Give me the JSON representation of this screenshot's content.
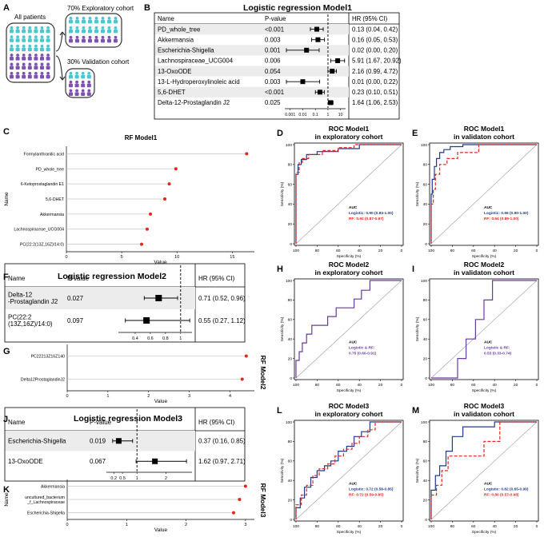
{
  "panel_a": {
    "label": "A",
    "all_patients": "All patients",
    "exploratory": "70% Exploratory cohort",
    "validation": "30% Validation cohort",
    "colors": {
      "teal": "#4bc8cf",
      "purple": "#7e52b4"
    }
  },
  "chart_data": [
    {
      "id": "B",
      "type": "forest",
      "title": "Logistic regression Model1",
      "headers": {
        "name": "Name",
        "p": "P-value",
        "hr": "HR (95% CI)"
      },
      "rows": [
        {
          "name": "PD_whole_tree",
          "p": "<0.001",
          "hr": 0.13,
          "lo": 0.04,
          "hi": 0.42,
          "hr_text": "0.13 (0.04, 0.42)"
        },
        {
          "name": "Akkermansia",
          "p": "0.003",
          "hr": 0.16,
          "lo": 0.05,
          "hi": 0.53,
          "hr_text": "0.16 (0.05, 0.53)"
        },
        {
          "name": "Escherichia-Shigella",
          "p": "0.001",
          "hr": 0.02,
          "lo": 0.0,
          "hi": 0.2,
          "hr_text": "0.02 (0.00, 0.20)"
        },
        {
          "name": "Lachnospiraceae_UCG004",
          "p": "0.006",
          "hr": 5.91,
          "lo": 1.67,
          "hi": 20.92,
          "hr_text": "5.91 (1.67, 20.92)"
        },
        {
          "name": "13-OxoODE",
          "p": "0.054",
          "hr": 2.16,
          "lo": 0.99,
          "hi": 4.72,
          "hr_text": "2.16 (0.99, 4.72)"
        },
        {
          "name": "13-L-Hydroperoxylinoleic acid",
          "p": "0.003",
          "hr": 0.01,
          "lo": 0.0,
          "hi": 0.22,
          "hr_text": "0.01 (0.00, 0.22)"
        },
        {
          "name": "5,6-DHET",
          "p": "<0.001",
          "hr": 0.23,
          "lo": 0.1,
          "hi": 0.51,
          "hr_text": "0.23 (0.10, 0.51)"
        },
        {
          "name": "Delta-12-Prostaglandin J2",
          "p": "0.025",
          "hr": 1.64,
          "lo": 1.06,
          "hi": 2.53,
          "hr_text": "1.64 (1.06, 2.53)"
        }
      ],
      "xscale": "log",
      "ticks": [
        "0.001",
        "0.01",
        "0.1",
        "1",
        "10"
      ]
    },
    {
      "id": "C",
      "type": "lollipop",
      "title": "RF Model1",
      "xlabel": "Value",
      "ylabel": "Name",
      "categories": [
        "Formylanthranilic acid",
        "PD_whole_tree",
        "6-Ketoprostaglandin E1",
        "5,6-DHET",
        "Akkermansia",
        "Lachnospiraceae_UCG004",
        "PC(22:2(13Z,16Z)/14:0)"
      ],
      "values": [
        16.3,
        9.9,
        9.3,
        8.9,
        7.6,
        7.3,
        6.8
      ],
      "xlim": [
        0,
        17
      ],
      "ticks": [
        "0",
        "5",
        "10",
        "15"
      ]
    },
    {
      "id": "D",
      "type": "roc",
      "title": "ROC Model1",
      "subtitle": "in exploratory cohort",
      "xlabel": "Specificity (%)",
      "ylabel": "Sensitivity (%)",
      "xticks": [
        "100",
        "80",
        "60",
        "40",
        "20",
        "0"
      ],
      "yticks": [
        "0",
        "20",
        "40",
        "60",
        "80",
        "100"
      ],
      "auc_title": "AUC",
      "series": [
        {
          "name": "Logistic",
          "label": "Logistic: 0.90 (0.83-1.00)",
          "color": "#1f3a93",
          "dash": false,
          "fpr": [
            0,
            0,
            2,
            2,
            5,
            5,
            10,
            10,
            20,
            20,
            40,
            40,
            60,
            60,
            100
          ],
          "tpr": [
            0,
            70,
            70,
            80,
            80,
            85,
            85,
            90,
            90,
            93,
            93,
            96,
            96,
            100,
            100
          ]
        },
        {
          "name": "RF",
          "label": "RF: 0.92 (0.87-0.97)",
          "color": "#e3261e",
          "dash": true,
          "fpr": [
            0,
            0,
            3,
            3,
            6,
            6,
            12,
            12,
            25,
            25,
            40,
            40,
            55,
            55,
            100
          ],
          "tpr": [
            0,
            72,
            72,
            82,
            82,
            86,
            86,
            90,
            90,
            94,
            94,
            97,
            97,
            100,
            100
          ]
        }
      ]
    },
    {
      "id": "E",
      "type": "roc",
      "title": "ROC Model1",
      "subtitle": "in validaton cohort",
      "xlabel": "Specificity (%)",
      "ylabel": "Sensitivity (%)",
      "xticks": [
        "100",
        "80",
        "60",
        "40",
        "20",
        "0"
      ],
      "yticks": [
        "0",
        "20",
        "40",
        "60",
        "80",
        "100"
      ],
      "auc_title": "AUC",
      "series": [
        {
          "name": "Logistic",
          "label": "Logistic: 0.96 (0.90-1.00)",
          "color": "#1f3a93",
          "dash": false,
          "fpr": [
            0,
            0,
            1,
            1,
            3,
            3,
            5,
            5,
            8,
            8,
            12,
            12,
            18,
            18,
            30,
            30,
            100
          ],
          "tpr": [
            0,
            50,
            50,
            65,
            65,
            78,
            78,
            86,
            86,
            92,
            92,
            95,
            95,
            98,
            98,
            100,
            100
          ]
        },
        {
          "name": "RF",
          "label": "RF: 0.94 (0.89-1.00)",
          "color": "#e3261e",
          "dash": true,
          "fpr": [
            0,
            0,
            2,
            2,
            4,
            4,
            8,
            8,
            15,
            15,
            25,
            25,
            45,
            45,
            100
          ],
          "tpr": [
            0,
            40,
            40,
            55,
            55,
            70,
            70,
            80,
            80,
            86,
            86,
            92,
            92,
            100,
            100
          ]
        }
      ]
    },
    {
      "id": "F",
      "type": "forest",
      "title": "Logistic regression Model2",
      "headers": {
        "name": "Name",
        "p": "P-value",
        "hr": "HR (95% CI)"
      },
      "rows": [
        {
          "name_lines": [
            "Delta-12",
            "-Prostaglandin J2"
          ],
          "p": "0.027",
          "hr": 0.71,
          "lo": 0.52,
          "hi": 0.96,
          "hr_text": "0.71 (0.52, 0.96)"
        },
        {
          "name_lines": [
            "PC(22:2",
            "(13Z,16Z)/14:0)"
          ],
          "p": "0.097",
          "hr": 0.55,
          "lo": 0.27,
          "hi": 1.12,
          "hr_text": "0.55 (0.27, 1.12)"
        }
      ],
      "xscale": "linear",
      "xlim": [
        0.2,
        1.15
      ],
      "ticks": [
        "0.4",
        "0.6",
        "0.8",
        "1"
      ]
    },
    {
      "id": "G",
      "type": "lollipop",
      "title": "RF Model2",
      "xlabel": "Value",
      "categories": [
        "PC22213Z16Z140",
        "Delta12ProstaglandinJ2"
      ],
      "values": [
        4.4,
        4.3
      ],
      "xlim": [
        0,
        4.6
      ],
      "ticks": [
        "0",
        "1",
        "2",
        "3",
        "4"
      ]
    },
    {
      "id": "H",
      "type": "roc",
      "title": "ROC Model2",
      "subtitle": "in exploratory cohort",
      "xlabel": "Specificity (%)",
      "ylabel": "Sensitivity (%)",
      "xticks": [
        "100",
        "80",
        "60",
        "40",
        "20",
        "0"
      ],
      "yticks": [
        "0",
        "20",
        "40",
        "60",
        "80",
        "100"
      ],
      "auc_title": "AUC",
      "auc_sub": "Logistic & RF:",
      "series": [
        {
          "name": "Logistic & RF",
          "label": "0.75 (0.60-0.91)",
          "color": "#6a3a9f",
          "dash": false,
          "fpr": [
            0,
            0,
            3,
            3,
            6,
            6,
            10,
            10,
            15,
            15,
            22,
            22,
            30,
            30,
            38,
            38,
            45,
            45,
            55,
            55,
            62,
            62,
            70,
            70,
            80,
            100
          ],
          "tpr": [
            0,
            18,
            18,
            27,
            27,
            36,
            36,
            45,
            45,
            54,
            54,
            54,
            54,
            63,
            63,
            72,
            72,
            72,
            72,
            81,
            81,
            90,
            90,
            100,
            100,
            100
          ]
        }
      ]
    },
    {
      "id": "I",
      "type": "roc",
      "title": "ROC Model2",
      "subtitle": "in validaton cohort",
      "xlabel": "Specificity (%)",
      "ylabel": "Sensitivity (%)",
      "xticks": [
        "100",
        "80",
        "60",
        "40",
        "20",
        "0"
      ],
      "yticks": [
        "0",
        "20",
        "40",
        "60",
        "80",
        "100"
      ],
      "auc_title": "AUC",
      "auc_sub": "Logistic & RF:",
      "series": [
        {
          "name": "Logistic & RF",
          "label": "0.53 (0.33-0.74)",
          "color": "#6a3a9f",
          "dash": false,
          "fpr": [
            0,
            0,
            25,
            25,
            33,
            33,
            42,
            42,
            50,
            50,
            58,
            58,
            100
          ],
          "tpr": [
            0,
            0,
            0,
            20,
            20,
            40,
            40,
            60,
            60,
            80,
            80,
            100,
            100
          ]
        }
      ]
    },
    {
      "id": "J",
      "type": "forest",
      "title": "Logistic regression Model3",
      "headers": {
        "name": "Name",
        "p": "P-value",
        "hr": "HR (95% CI)"
      },
      "rows": [
        {
          "name": "Escherichia-Shigella",
          "p": "0.019",
          "hr": 0.37,
          "lo": 0.16,
          "hi": 0.85,
          "hr_text": "0.37 (0.16, 0.85)"
        },
        {
          "name": "13-OxoODE",
          "p": "0.067",
          "hr": 1.62,
          "lo": 0.97,
          "hi": 2.71,
          "hr_text": "1.62 (0.97, 2.71)"
        }
      ],
      "xscale": "linear",
      "xlim": [
        0,
        2.9
      ],
      "ticks": [
        "0.2",
        "0.5",
        "1",
        "2"
      ]
    },
    {
      "id": "K",
      "type": "lollipop",
      "title": "RF Model3",
      "xlabel": "Value",
      "ylabel": "Name",
      "categories": [
        "Akkermansia",
        "uncultured_bacterium_f_Lachnospiraceae",
        "Escherichia-Shigella"
      ],
      "category_lines": [
        [
          "Akkermansia"
        ],
        [
          "uncultured_bacterium",
          "_f_Lachnospiraceae"
        ],
        [
          "Escherichia-Shigella"
        ]
      ],
      "values": [
        3.0,
        2.9,
        2.8
      ],
      "xlim": [
        0,
        3.15
      ],
      "ticks": [
        "0",
        "1",
        "2",
        "3"
      ]
    },
    {
      "id": "L",
      "type": "roc",
      "title": "ROC Model3",
      "subtitle": "in exploratory cohort",
      "xlabel": "Specificity (%)",
      "ylabel": "Sensitivity (%)",
      "xticks": [
        "100",
        "80",
        "60",
        "40",
        "20",
        "0"
      ],
      "yticks": [
        "0",
        "20",
        "40",
        "60",
        "80",
        "100"
      ],
      "auc_title": "AUC",
      "series": [
        {
          "name": "Logistic",
          "label": "Logistic: 0.72 (0.58-0.85)",
          "color": "#1f3a93",
          "dash": false,
          "fpr": [
            0,
            0,
            4,
            4,
            8,
            8,
            14,
            14,
            20,
            20,
            27,
            27,
            33,
            33,
            40,
            40,
            48,
            48,
            55,
            55,
            62,
            62,
            70,
            70,
            80,
            100
          ],
          "tpr": [
            0,
            12,
            12,
            22,
            22,
            33,
            33,
            43,
            43,
            50,
            50,
            55,
            55,
            60,
            60,
            70,
            70,
            75,
            75,
            85,
            85,
            90,
            90,
            100,
            100,
            100
          ]
        },
        {
          "name": "RF",
          "label": "RF: 0.72 (0.59-0.85)",
          "color": "#e3261e",
          "dash": true,
          "fpr": [
            0,
            0,
            5,
            5,
            10,
            10,
            16,
            16,
            22,
            22,
            30,
            30,
            37,
            37,
            45,
            45,
            53,
            53,
            60,
            60,
            68,
            68,
            75,
            75,
            85,
            100
          ],
          "tpr": [
            0,
            15,
            15,
            25,
            25,
            35,
            35,
            45,
            45,
            52,
            52,
            57,
            57,
            65,
            65,
            72,
            72,
            78,
            78,
            85,
            85,
            92,
            92,
            100,
            100,
            100
          ]
        }
      ]
    },
    {
      "id": "M",
      "type": "roc",
      "title": "ROC Model3",
      "subtitle": "in validaton cohort",
      "xlabel": "Specificity (%)",
      "ylabel": "Sensitivity (%)",
      "xticks": [
        "100",
        "80",
        "60",
        "40",
        "20",
        "0"
      ],
      "yticks": [
        "0",
        "20",
        "40",
        "60",
        "80",
        "100"
      ],
      "auc_title": "AUC",
      "series": [
        {
          "name": "Logistic",
          "label": "Logistic: 0.82 (0.65-0.99)",
          "color": "#1f3a93",
          "dash": false,
          "fpr": [
            0,
            0,
            4,
            4,
            8,
            8,
            14,
            14,
            20,
            20,
            30,
            30,
            60,
            60,
            100
          ],
          "tpr": [
            0,
            30,
            30,
            45,
            45,
            55,
            55,
            70,
            70,
            85,
            85,
            95,
            95,
            100,
            100
          ]
        },
        {
          "name": "RF",
          "label": "RF: 0.80 (0.57-0.98)",
          "color": "#e3261e",
          "dash": true,
          "fpr": [
            0,
            0,
            5,
            5,
            10,
            10,
            16,
            16,
            25,
            25,
            50,
            50,
            65,
            65,
            100
          ],
          "tpr": [
            0,
            25,
            25,
            35,
            35,
            50,
            50,
            65,
            65,
            65,
            65,
            80,
            80,
            100,
            100
          ]
        }
      ]
    }
  ]
}
